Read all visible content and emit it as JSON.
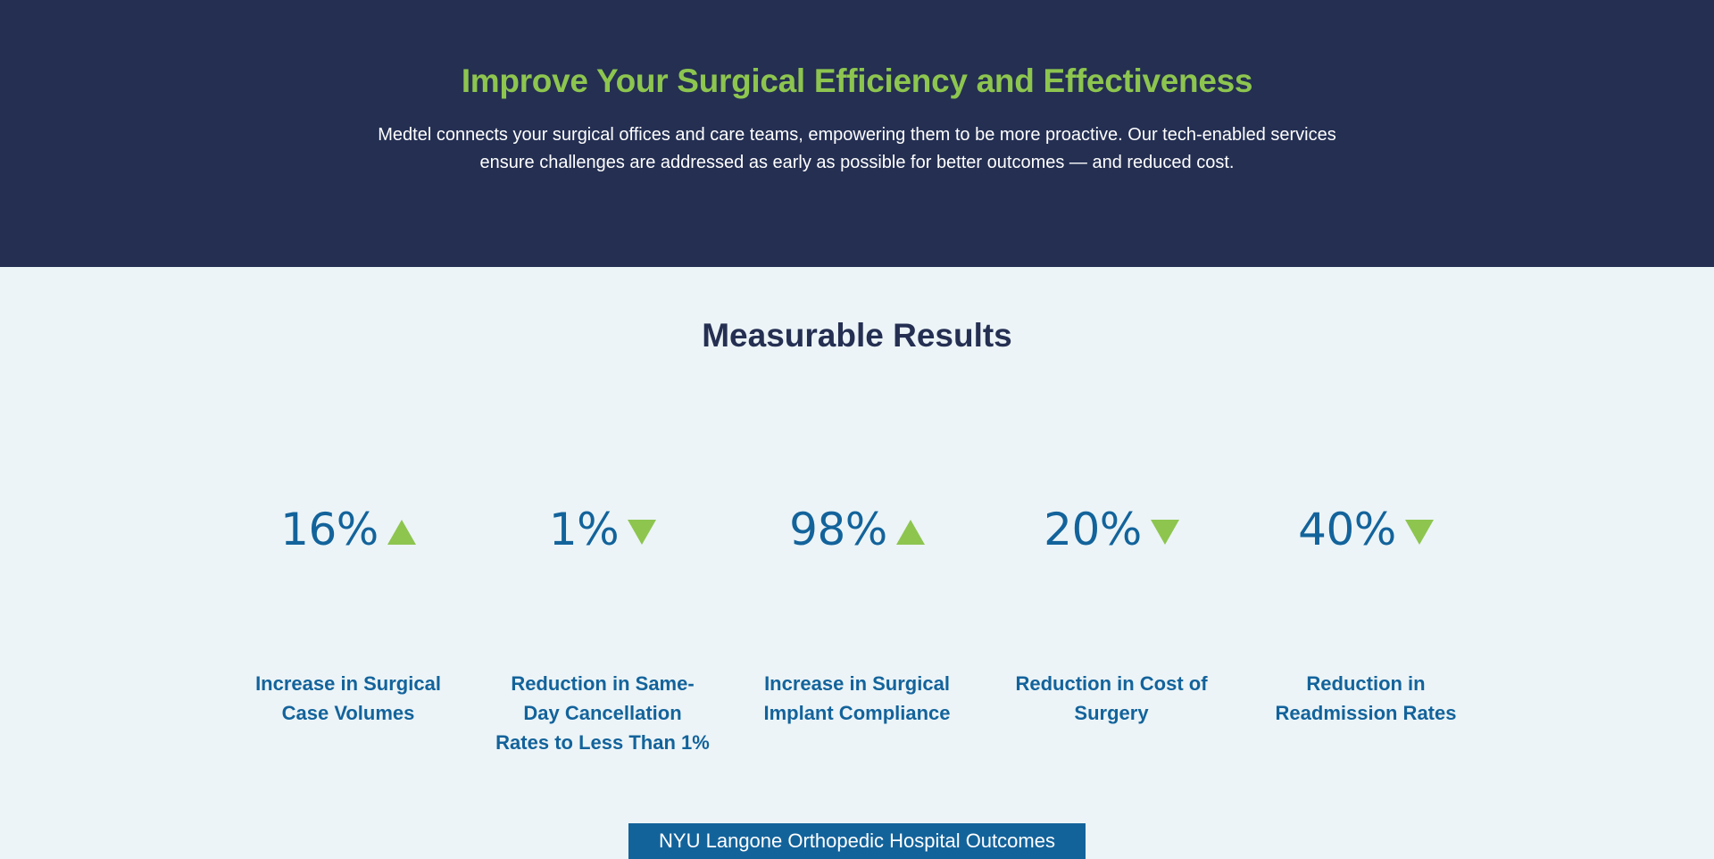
{
  "hero": {
    "title": "Improve Your Surgical Efficiency and Effectiveness",
    "description": "Medtel connects your surgical offices and care teams, empowering them to be more proactive. Our tech-enabled services ensure challenges are addressed as early as possible for better outcomes — and reduced cost."
  },
  "results": {
    "title": "Measurable Results",
    "stats": [
      {
        "value": "16%",
        "direction": "up",
        "label": "Increase in Surgical Case Volumes"
      },
      {
        "value": "1%",
        "direction": "down",
        "label": "Reduction in Same-Day Cancellation Rates to Less Than 1%"
      },
      {
        "value": "98%",
        "direction": "up",
        "label": "Increase in Surgical Implant Compliance"
      },
      {
        "value": "20%",
        "direction": "down",
        "label": "Reduction in Cost of Surgery"
      },
      {
        "value": "40%",
        "direction": "down",
        "label": "Reduction in Readmission Rates"
      }
    ],
    "cta_label": "NYU Langone Orthopedic Hospital Outcomes"
  },
  "colors": {
    "hero_background": "#242f52",
    "accent_green": "#8dc54f",
    "stat_blue": "#13639b",
    "section_background": "#ecf4f7"
  }
}
